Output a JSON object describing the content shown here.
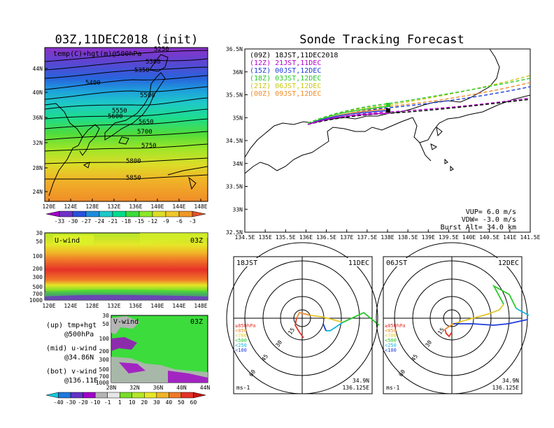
{
  "left_panel": {
    "title": "03Z,11DEC2018 (init)",
    "map_label": "temp(C)+hgt(m)@500hPa",
    "lat_ticks": [
      "44N",
      "40N",
      "36N",
      "32N",
      "28N",
      "24N"
    ],
    "lon_ticks": [
      "120E",
      "124E",
      "128E",
      "132E",
      "136E",
      "140E",
      "144E",
      "148E"
    ],
    "contours": [
      "5250",
      "5300",
      "5350",
      "5400",
      "5500",
      "5550",
      "5600",
      "5650",
      "5700",
      "5750",
      "5800",
      "5850"
    ],
    "colorbar_labels": [
      "-33",
      "-30",
      "-27",
      "-24",
      "-21",
      "-18",
      "-15",
      "-12",
      "-9",
      "-6",
      "-3"
    ],
    "colorbar_colors": [
      "#a000c8",
      "#6e32c8",
      "#2850dc",
      "#1e8cdc",
      "#1ec8c8",
      "#00dc8c",
      "#3cdc3c",
      "#8ce628",
      "#dcdc28",
      "#f0c828",
      "#f09628",
      "#e65028"
    ]
  },
  "u_panel": {
    "label": "U-wind",
    "time": "03Z",
    "p_ticks": [
      "30",
      "50",
      "100",
      "200",
      "300",
      "500",
      "700",
      "1000"
    ],
    "lon_ticks": [
      "120E",
      "124E",
      "128E",
      "132E",
      "136E",
      "140E",
      "144E",
      "148E"
    ]
  },
  "v_panel": {
    "label": "V-wind",
    "time": "03Z",
    "p_ticks": [
      "30",
      "50",
      "100",
      "200",
      "300",
      "500",
      "700",
      "1000"
    ],
    "lat_ticks": [
      "28N",
      "32N",
      "36N",
      "40N",
      "44N"
    ],
    "colorbar_labels": [
      "-40",
      "-30",
      "-20",
      "-10",
      "-1",
      "1",
      "10",
      "20",
      "30",
      "40",
      "50",
      "60"
    ],
    "colorbar_colors": [
      "#14c8dc",
      "#1e78dc",
      "#6432c8",
      "#a000c8",
      "#b4b4b4",
      "#e6e6e6",
      "#78dc28",
      "#b4e628",
      "#e6e628",
      "#f0b428",
      "#f07828",
      "#e63228",
      "#c81414"
    ]
  },
  "legend_notes": {
    "up_line1": "(up) tmp+hgt",
    "up_line2": "@500hPa",
    "mid_line1": "(mid) u-wind",
    "mid_line2": "@34.86N",
    "bot_line1": "(bot) v-wind",
    "bot_line2": "@136.11E"
  },
  "track_panel": {
    "title": "Sonde Tracking Forecast",
    "lat_ticks": [
      "36.5N",
      "36N",
      "35.5N",
      "35N",
      "34.5N",
      "34N",
      "33.5N",
      "33N",
      "32.5N"
    ],
    "lon_ticks": [
      "134.5E",
      "135E",
      "135.5E",
      "136E",
      "136.5E",
      "137E",
      "137.5E",
      "138E",
      "138.5E",
      "139E",
      "139.5E",
      "140E",
      "140.5E",
      "141E",
      "141.5E"
    ],
    "legend": [
      {
        "text": "(09Z)  18JST,11DEC2018",
        "color": "#000000"
      },
      {
        "text": "(12Z)  21JST,11DEC",
        "color": "#b400c8"
      },
      {
        "text": "(15Z)  00JST,12DEC",
        "color": "#1e3cdc"
      },
      {
        "text": "(18Z)  03JST,12DEC",
        "color": "#28c828"
      },
      {
        "text": "(21Z)  06JST,12DEC",
        "color": "#c8c814"
      },
      {
        "text": "(00Z)  09JST,12DEC",
        "color": "#f08c28"
      }
    ],
    "vup": "VUP=  6.0 m/s",
    "vdw": "VDW= -3.0 m/s",
    "burst": "Burst Alt= 34.0 km"
  },
  "hodo_left": {
    "time": "18JST",
    "date": "11DEC",
    "rings": [
      "15",
      "30",
      "45",
      "60"
    ],
    "unit": "ms-1",
    "lat": "34.9N",
    "lon": "136.125E",
    "levels": [
      {
        "text": "≥850hPa",
        "color": "#e63228"
      },
      {
        "text": "<850",
        "color": "#f08c28"
      },
      {
        "text": "<700",
        "color": "#e6c828"
      },
      {
        "text": "<500",
        "color": "#28c828"
      },
      {
        "text": "<250",
        "color": "#14b4dc"
      },
      {
        "text": "<100",
        "color": "#1e3cdc"
      }
    ]
  },
  "hodo_right": {
    "time": "06JST",
    "date": "12DEC",
    "rings": [
      "15",
      "30",
      "45",
      "60"
    ],
    "unit": "ms-1",
    "lat": "34.9N",
    "lon": "136.125E",
    "levels": [
      {
        "text": "≥850hPa",
        "color": "#e63228"
      },
      {
        "text": "<850",
        "color": "#f08c28"
      },
      {
        "text": "<700",
        "color": "#e6c828"
      },
      {
        "text": "<500",
        "color": "#28c828"
      },
      {
        "text": "<250",
        "color": "#14b4dc"
      },
      {
        "text": "<100",
        "color": "#1e3cdc"
      }
    ]
  }
}
